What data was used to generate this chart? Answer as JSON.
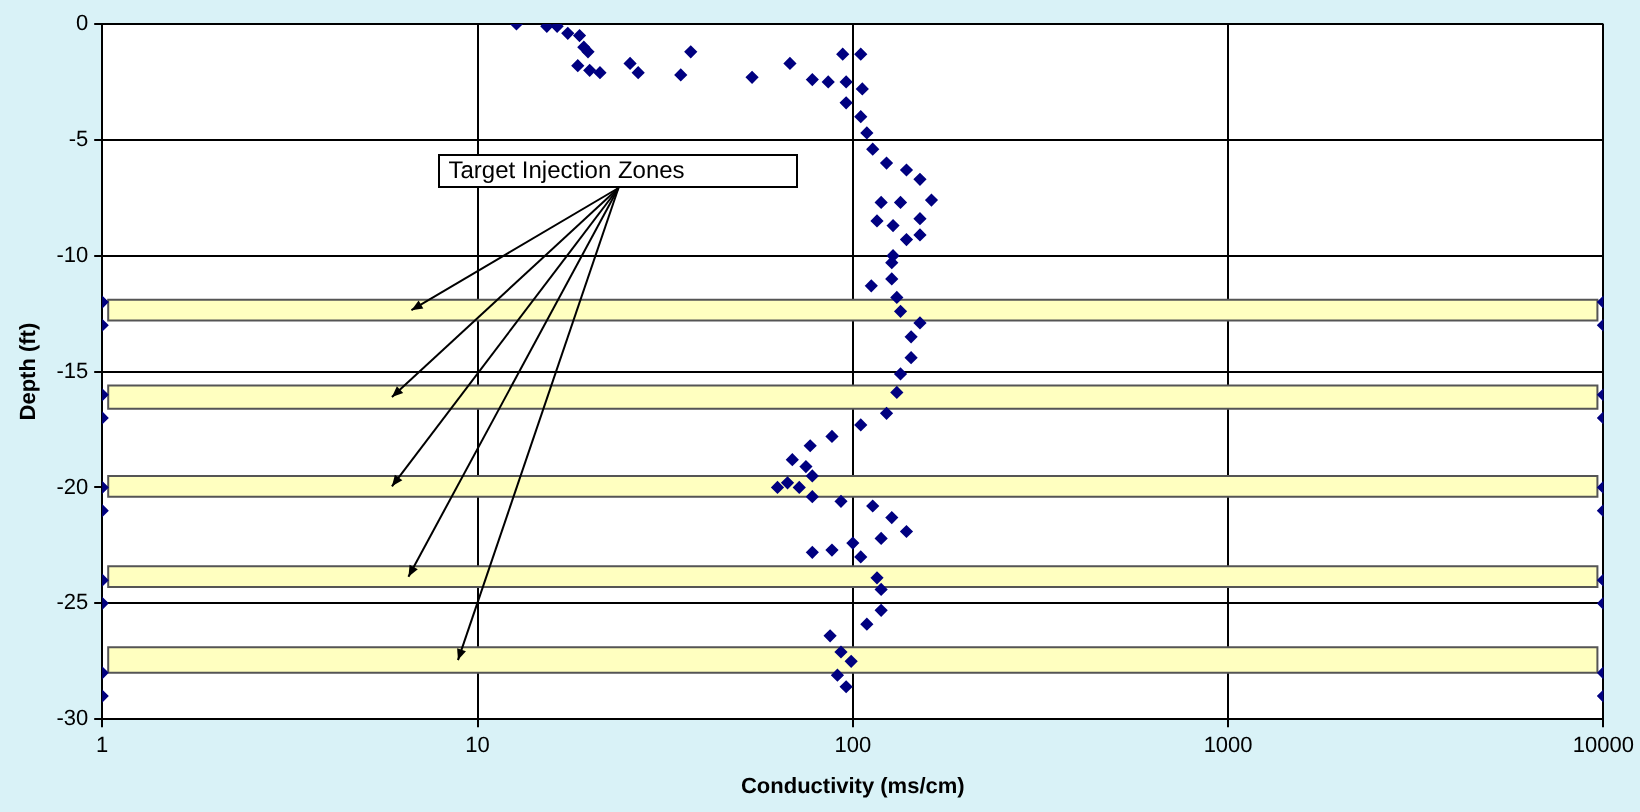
{
  "chart_data": {
    "type": "scatter",
    "xlabel": "Conductivity (ms/cm)",
    "ylabel": "Depth (ft)",
    "xlim": [
      1,
      10000
    ],
    "xticks": [
      1,
      10,
      100,
      1000,
      10000
    ],
    "ylim": [
      -30,
      0
    ],
    "yticks": [
      -30,
      -25,
      -20,
      -15,
      -10,
      -5,
      0
    ],
    "log": "x",
    "grid": true,
    "legend": false,
    "marker": "diamond",
    "series": [
      {
        "color": "#000080",
        "x": [
          12.7,
          15.3,
          16.3,
          17.4,
          18.7,
          19.2,
          19.7,
          18.5,
          19.9,
          21.2,
          25.5,
          26.8,
          34.8,
          37,
          53.9,
          68,
          78,
          86,
          94,
          105,
          96,
          106,
          96,
          105,
          109,
          113,
          123,
          139,
          151,
          162,
          119,
          134,
          151,
          116,
          128,
          151,
          128,
          139,
          127,
          127,
          112,
          131,
          134,
          151,
          143,
          143,
          134,
          131,
          123,
          105,
          88,
          77,
          69,
          75,
          78,
          67,
          63,
          72,
          78,
          93,
          113,
          127,
          139,
          119,
          100,
          88,
          78,
          105,
          116,
          119,
          119,
          109,
          87,
          93,
          99,
          91,
          96
        ],
        "values": [
          0,
          -0.1,
          -0.1,
          -0.4,
          -0.5,
          -1,
          -1.2,
          -1.8,
          -2,
          -2.1,
          -1.7,
          -2.1,
          -2.2,
          -1.2,
          -2.3,
          -1.7,
          -2.4,
          -2.5,
          -1.3,
          -1.3,
          -2.5,
          -2.8,
          -3.4,
          -4,
          -4.7,
          -5.4,
          -6,
          -6.3,
          -6.7,
          -7.6,
          -7.7,
          -7.7,
          -8.4,
          -8.5,
          -8.7,
          -9.1,
          -10,
          -9.3,
          -10.3,
          -11,
          -11.3,
          -11.8,
          -12.4,
          -12.9,
          -13.5,
          -14.4,
          -15.1,
          -15.9,
          -16.8,
          -17.3,
          -17.8,
          -18.2,
          -18.8,
          -19.1,
          -19.5,
          -19.8,
          -20,
          -20,
          -20.4,
          -20.6,
          -20.8,
          -21.3,
          -21.9,
          -22.2,
          -22.4,
          -22.7,
          -22.8,
          -23,
          -23.9,
          -24.4,
          -25.3,
          -25.9,
          -26.4,
          -27.1,
          -27.5,
          -28.1,
          -28.6
        ]
      },
      {
        "color": "#000080",
        "x": [
          1,
          1,
          1,
          1,
          1,
          1,
          1,
          1,
          1,
          1,
          10000,
          10000,
          10000,
          10000,
          10000,
          10000,
          10000,
          10000,
          10000,
          10000
        ],
        "values": [
          -12,
          -13,
          -16,
          -17,
          -20,
          -21,
          -24,
          -25,
          -28,
          -29,
          -12,
          -13,
          -16,
          -17,
          -20,
          -21,
          -24,
          -25,
          -28,
          -29
        ]
      }
    ],
    "bands": [
      {
        "axis": "y",
        "from": -12.8,
        "to": -11.9,
        "color": "#ffffc0"
      },
      {
        "axis": "y",
        "from": -16.6,
        "to": -15.6,
        "color": "#ffffc0"
      },
      {
        "axis": "y",
        "from": -20.4,
        "to": -19.5,
        "color": "#ffffc0"
      },
      {
        "axis": "y",
        "from": -24.3,
        "to": -23.4,
        "color": "#ffffc0"
      },
      {
        "axis": "y",
        "from": -28,
        "to": -26.9,
        "color": "#ffffc0"
      }
    ],
    "annotations": [
      "Target Injection Zones"
    ]
  }
}
